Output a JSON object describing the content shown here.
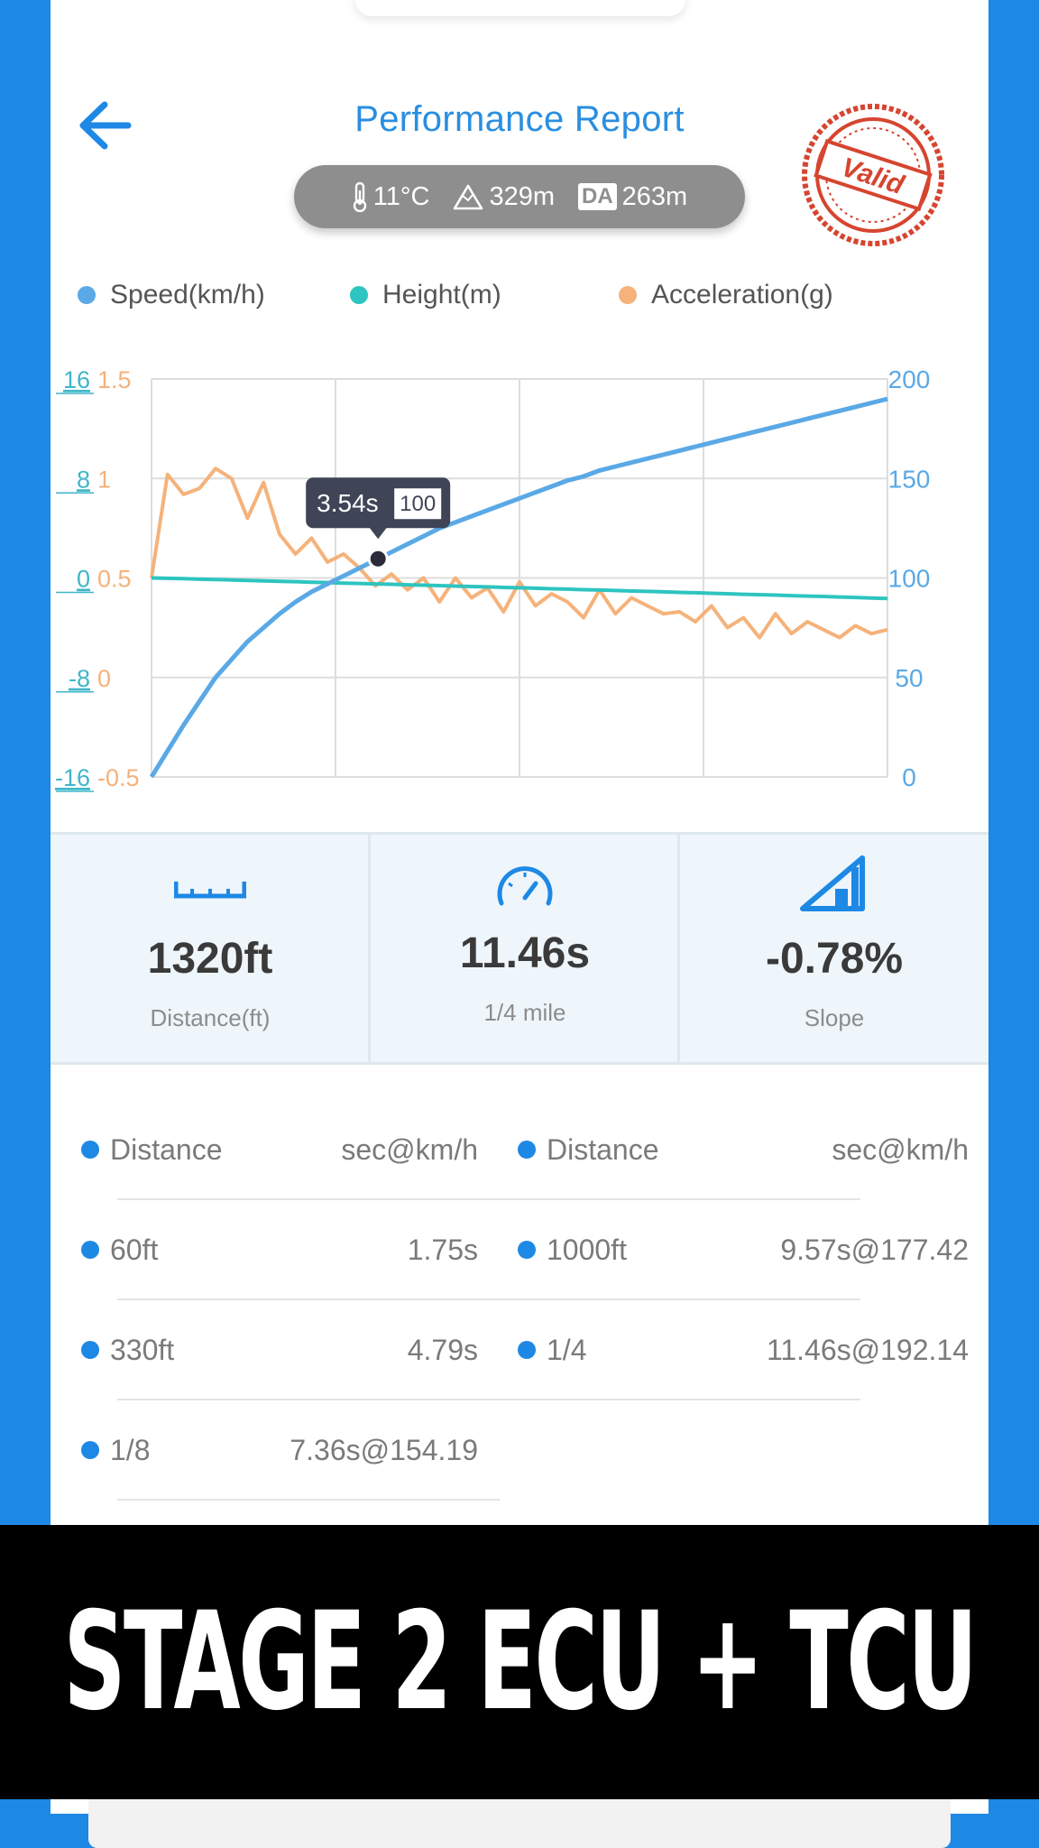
{
  "header": {
    "title": "Performance Report",
    "stamp_text": "Valid",
    "conditions": {
      "temperature": "11°C",
      "altitude": "329m",
      "da_label": "DA",
      "density_altitude": "263m"
    }
  },
  "legend": [
    {
      "label": "Speed(km/h)",
      "color": "#5aa9e6"
    },
    {
      "label": "Height(m)",
      "color": "#2ec4c0"
    },
    {
      "label": "Acceleration(g)",
      "color": "#f5b27a"
    }
  ],
  "tooltip": {
    "time": "3.54s",
    "speed": "100"
  },
  "chart_data": {
    "type": "line",
    "x": [
      0.0,
      0.25,
      0.5,
      0.75,
      1.0,
      1.25,
      1.5,
      1.75,
      2.0,
      2.25,
      2.5,
      2.75,
      3.0,
      3.25,
      3.5,
      3.75,
      4.0,
      4.25,
      4.5,
      4.75,
      5.0,
      5.25,
      5.5,
      5.75,
      6.0,
      6.25,
      6.5,
      6.75,
      7.0,
      7.25,
      7.5,
      7.75,
      8.0,
      8.25,
      8.5,
      8.75,
      9.0,
      9.25,
      9.5,
      9.75,
      10.0,
      10.25,
      10.5,
      10.75,
      11.0,
      11.25,
      11.5
    ],
    "xlim": [
      0,
      11.5
    ],
    "series": [
      {
        "name": "Speed(km/h)",
        "axis": "right",
        "color": "#5aa9e6",
        "values": [
          0,
          13,
          26,
          38,
          50,
          59,
          68,
          75,
          82,
          88,
          93,
          97,
          101,
          105,
          109,
          113,
          117,
          121,
          125,
          128,
          131,
          134,
          137,
          140,
          143,
          146,
          149,
          151,
          154,
          156,
          158,
          160,
          162,
          164,
          166,
          168,
          170,
          172,
          174,
          176,
          178,
          180,
          182,
          184,
          186,
          188,
          190
        ]
      },
      {
        "name": "Height(m)",
        "axis": "left",
        "color": "#2ec4c0",
        "values": [
          0.0,
          -0.03,
          -0.06,
          -0.1,
          -0.13,
          -0.16,
          -0.2,
          -0.23,
          -0.27,
          -0.3,
          -0.34,
          -0.37,
          -0.41,
          -0.44,
          -0.48,
          -0.51,
          -0.55,
          -0.58,
          -0.62,
          -0.65,
          -0.69,
          -0.72,
          -0.76,
          -0.79,
          -0.83,
          -0.87,
          -0.9,
          -0.94,
          -0.97,
          -1.01,
          -1.05,
          -1.08,
          -1.12,
          -1.16,
          -1.19,
          -1.23,
          -1.27,
          -1.31,
          -1.34,
          -1.38,
          -1.42,
          -1.46,
          -1.49,
          -1.53,
          -1.57,
          -1.61,
          -1.65
        ]
      },
      {
        "name": "Acceleration(g)",
        "axis": "left2",
        "color": "#f5b27a",
        "values": [
          0.5,
          1.02,
          0.92,
          0.95,
          1.05,
          1.0,
          0.8,
          0.98,
          0.72,
          0.62,
          0.7,
          0.58,
          0.62,
          0.55,
          0.46,
          0.52,
          0.44,
          0.5,
          0.38,
          0.5,
          0.4,
          0.45,
          0.33,
          0.48,
          0.36,
          0.42,
          0.38,
          0.3,
          0.44,
          0.32,
          0.4,
          0.36,
          0.32,
          0.33,
          0.28,
          0.36,
          0.25,
          0.3,
          0.2,
          0.32,
          0.22,
          0.28,
          0.24,
          0.2,
          0.26,
          0.22,
          0.24
        ]
      }
    ],
    "left_axis": {
      "ticks": [
        "16",
        "8",
        "0",
        "-8",
        "-16"
      ],
      "ylim": [
        -16,
        16
      ]
    },
    "left2_axis": {
      "ticks": [
        "1.5",
        "1",
        "0.5",
        "0",
        "-0.5"
      ],
      "ylim": [
        -0.5,
        1.5
      ]
    },
    "right_axis": {
      "ticks": [
        "200",
        "150",
        "100",
        "50",
        "0"
      ],
      "ylim": [
        0,
        200
      ]
    },
    "grid": true,
    "legend": "top"
  },
  "stats": [
    {
      "icon": "ruler-icon",
      "value": "1320ft",
      "label": "Distance(ft)"
    },
    {
      "icon": "speedometer-icon",
      "value": "11.46s",
      "label": "1/4 mile"
    },
    {
      "icon": "slope-icon",
      "value": "-0.78%",
      "label": "Slope"
    }
  ],
  "splits": {
    "header_left": {
      "name": "Distance",
      "value": "sec@km/h"
    },
    "header_right": {
      "name": "Distance",
      "value": "sec@km/h"
    },
    "left": [
      {
        "name": "60ft",
        "value": "1.75s"
      },
      {
        "name": "330ft",
        "value": "4.79s"
      },
      {
        "name": "1/8",
        "value": "7.36s@154.19"
      }
    ],
    "right": [
      {
        "name": "1000ft",
        "value": "9.57s@177.42"
      },
      {
        "name": "1/4",
        "value": "11.46s@192.14"
      }
    ]
  },
  "banner": {
    "text": "STAGE 2 ECU + TCU"
  }
}
